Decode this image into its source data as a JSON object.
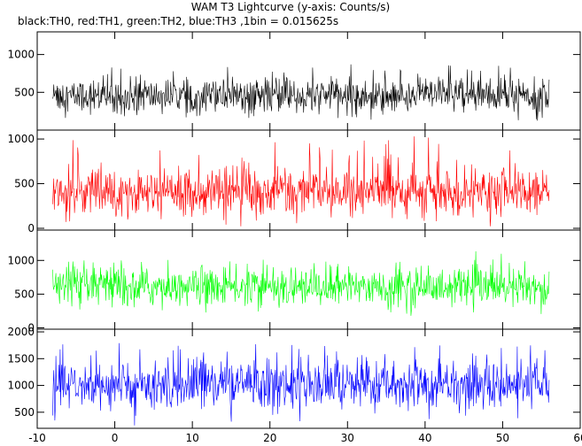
{
  "chart_data": {
    "type": "line",
    "title": "WAM T3 Lightcurve (y-axis: Counts/s)",
    "subtitle": "black:TH0, red:TH1, green:TH2, blue:TH3 ,1bin = 0.015625s",
    "x_range": [
      -10,
      60
    ],
    "x_data_range": [
      -8,
      56
    ],
    "x_ticks": [
      -10,
      0,
      10,
      20,
      30,
      40,
      50,
      60
    ],
    "colors": {
      "TH0": "#000000",
      "TH1": "#ff0000",
      "TH2": "#00ff00",
      "TH3": "#0000ff",
      "axis": "#000000"
    },
    "panels": [
      {
        "series": "TH0",
        "color": "#000000",
        "ylim": [
          0,
          1300
        ],
        "yticks": [
          500,
          1000
        ],
        "mean": 450,
        "spread": 110,
        "spike": 750
      },
      {
        "series": "TH1",
        "color": "#ff0000",
        "ylim": [
          -20,
          1100
        ],
        "yticks": [
          0,
          500,
          1000
        ],
        "mean": 400,
        "spread": 120,
        "spike": 850
      },
      {
        "series": "TH2",
        "color": "#00ff00",
        "ylim": [
          -20,
          1450
        ],
        "yticks": [
          0,
          500,
          1000
        ],
        "mean": 600,
        "spread": 140,
        "spike": 900
      },
      {
        "series": "TH3",
        "color": "#0000ff",
        "ylim": [
          200,
          2050
        ],
        "yticks": [
          500,
          1000,
          1500,
          2000
        ],
        "mean": 1000,
        "spread": 220,
        "spike": 1550
      }
    ]
  }
}
